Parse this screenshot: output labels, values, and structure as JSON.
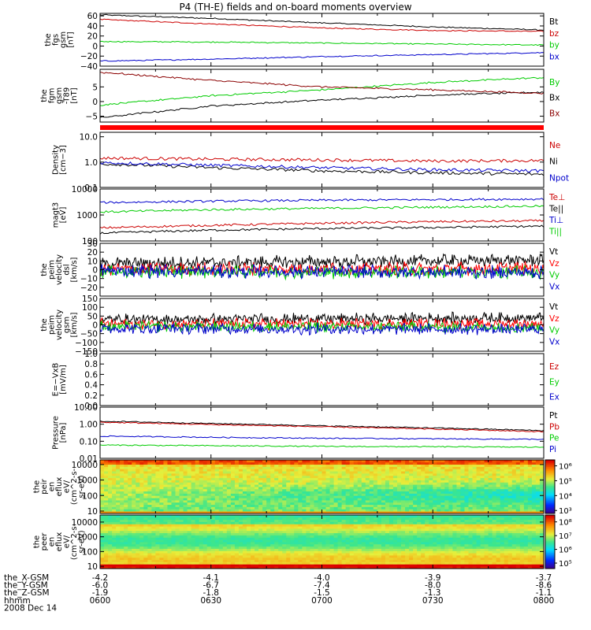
{
  "title": "P4 (TH-E) fields and on-board moments overview",
  "date_label": "2008 Dec 14",
  "x_axis": {
    "ticks": [
      "0600",
      "0630",
      "0700",
      "0730",
      "0800"
    ],
    "rows": [
      {
        "label": "the_X-GSM",
        "values": [
          "-4.2",
          "-4.1",
          "-4.0",
          "-3.9",
          "-3.7"
        ]
      },
      {
        "label": "the_Y-GSM",
        "values": [
          "-6.0",
          "-6.7",
          "-7.4",
          "-8.0",
          "-8.6"
        ]
      },
      {
        "label": "the_Z-GSM",
        "values": [
          "-1.9",
          "-1.8",
          "-1.5",
          "-1.3",
          "-1.1"
        ]
      },
      {
        "label": "hhmm",
        "values": [
          "0600",
          "0630",
          "0700",
          "0730",
          "0800"
        ]
      }
    ]
  },
  "chart_data": [
    {
      "type": "line",
      "ylabel": [
        "the",
        "fgs",
        "gsm",
        "[nT]"
      ],
      "ylim": [
        -40,
        65
      ],
      "yticks": [
        "60",
        "40",
        "20",
        "0",
        "−20",
        "−40"
      ],
      "ytick_values": [
        60,
        40,
        20,
        0,
        -20,
        -40
      ],
      "series": [
        {
          "name": "Bt",
          "color": "#000000",
          "x": [
            6.0,
            6.5,
            7.0,
            7.5,
            8.0
          ],
          "y": [
            62,
            55,
            46,
            38,
            32
          ]
        },
        {
          "name": "bz",
          "color": "#cc0000",
          "x": [
            6.0,
            6.5,
            7.0,
            7.5,
            8.0
          ],
          "y": [
            53,
            44,
            36,
            31,
            29
          ]
        },
        {
          "name": "by",
          "color": "#00cc00",
          "x": [
            6.0,
            6.5,
            7.0,
            7.5,
            8.0
          ],
          "y": [
            9,
            8,
            6,
            4,
            2
          ]
        },
        {
          "name": "bx",
          "color": "#0000cc",
          "x": [
            6.0,
            6.5,
            7.0,
            7.5,
            8.0
          ],
          "y": [
            -30,
            -26,
            -21,
            -17,
            -13
          ]
        }
      ]
    },
    {
      "type": "line",
      "ylabel": [
        "the",
        "fgm",
        "gsm",
        "-T89",
        "[nT]"
      ],
      "ylim": [
        -7,
        11
      ],
      "yticks": [
        "5",
        "0",
        "−5"
      ],
      "ytick_values": [
        5,
        0,
        -5
      ],
      "series": [
        {
          "name": "By",
          "color": "#00cc00",
          "x": [
            6.0,
            6.5,
            7.0,
            7.5,
            8.0
          ],
          "y": [
            -1.2,
            2.0,
            4.0,
            6.5,
            8.2
          ]
        },
        {
          "name": "Bx",
          "color": "#000000",
          "x": [
            6.0,
            6.5,
            7.0,
            7.5,
            8.0
          ],
          "y": [
            -5.5,
            -1.5,
            0.5,
            2.2,
            3.2
          ]
        },
        {
          "name": "Bx",
          "color": "#8b0000",
          "x": [
            6.0,
            6.5,
            7.0,
            7.5,
            8.0
          ],
          "y": [
            10.0,
            7.2,
            5.0,
            4.0,
            2.8
          ]
        }
      ]
    },
    {
      "type": "line",
      "ylabel": [
        "Density",
        "[cm−3]"
      ],
      "ylim": [
        0.1,
        15
      ],
      "log": true,
      "yticks": [
        "10.0",
        "1.0",
        "0.1"
      ],
      "ytick_values": [
        10,
        1,
        0.1
      ],
      "series": [
        {
          "name": "Ne",
          "color": "#cc0000",
          "x": [
            6.0,
            6.5,
            7.0,
            7.5,
            8.0
          ],
          "y": [
            1.45,
            1.3,
            1.22,
            1.1,
            1.15
          ]
        },
        {
          "name": "Ni",
          "color": "#000000",
          "x": [
            6.0,
            6.5,
            7.0,
            7.5,
            8.0
          ],
          "y": [
            0.85,
            0.6,
            0.45,
            0.38,
            0.33
          ]
        },
        {
          "name": "Npot",
          "color": "#0000cc",
          "x": [
            6.0,
            6.5,
            7.0,
            7.5,
            8.0
          ],
          "y": [
            0.95,
            0.75,
            0.6,
            0.5,
            0.45
          ]
        }
      ]
    },
    {
      "type": "line",
      "ylabel": [
        "magt3",
        "[eV]"
      ],
      "ylim": [
        100,
        10000
      ],
      "log": true,
      "yticks": [
        "10000",
        "1000",
        "100"
      ],
      "ytick_values": [
        10000,
        1000,
        100
      ],
      "series": [
        {
          "name": "Te⊥",
          "color": "#cc0000",
          "x": [
            6.0,
            6.5,
            7.0,
            7.5,
            8.0
          ],
          "y": [
            320,
            400,
            480,
            550,
            600
          ]
        },
        {
          "name": "Te||",
          "color": "#000000",
          "x": [
            6.0,
            6.5,
            7.0,
            7.5,
            8.0
          ],
          "y": [
            200,
            260,
            300,
            330,
            370
          ]
        },
        {
          "name": "Ti⊥",
          "color": "#0000cc",
          "x": [
            6.0,
            6.5,
            7.0,
            7.5,
            8.0
          ],
          "y": [
            3000,
            3400,
            3700,
            3900,
            4100
          ]
        },
        {
          "name": "Ti||",
          "color": "#00cc00",
          "x": [
            6.0,
            6.5,
            7.0,
            7.5,
            8.0
          ],
          "y": [
            1300,
            1600,
            1800,
            2000,
            2200
          ]
        }
      ]
    },
    {
      "type": "line",
      "ylabel": [
        "the",
        "peim",
        "velocity",
        "dsl",
        "[km/s]"
      ],
      "ylim": [
        -30,
        30
      ],
      "yticks": [
        "30",
        "20",
        "10",
        "0",
        "−10",
        "−20"
      ],
      "ytick_values": [
        30,
        20,
        10,
        0,
        -10,
        -20
      ],
      "series": [
        {
          "name": "Vt",
          "color": "#000000",
          "x": [
            6.0,
            6.5,
            7.0,
            7.5,
            8.0
          ],
          "y": [
            7,
            8,
            9,
            10,
            11
          ]
        },
        {
          "name": "Vz",
          "color": "#ff0000",
          "x": [
            6.0,
            6.5,
            7.0,
            7.5,
            8.0
          ],
          "y": [
            1,
            1,
            1,
            1,
            2
          ]
        },
        {
          "name": "Vy",
          "color": "#00cc00",
          "x": [
            6.0,
            6.5,
            7.0,
            7.5,
            8.0
          ],
          "y": [
            -2,
            -2,
            -3,
            -3,
            -3
          ]
        },
        {
          "name": "Vx",
          "color": "#0000cc",
          "x": [
            6.0,
            6.5,
            7.0,
            7.5,
            8.0
          ],
          "y": [
            -1,
            -2,
            -2,
            -3,
            -3
          ]
        }
      ]
    },
    {
      "type": "line",
      "ylabel": [
        "the",
        "peim",
        "velocity",
        "gsm",
        "[km/s]"
      ],
      "ylim": [
        -150,
        150
      ],
      "yticks": [
        "150",
        "100",
        "50",
        "0",
        "−50",
        "−100",
        "−150"
      ],
      "ytick_values": [
        150,
        100,
        50,
        0,
        -50,
        -100,
        -150
      ],
      "series": [
        {
          "name": "Vt",
          "color": "#000000",
          "x": [
            6.0,
            6.5,
            7.0,
            7.5,
            8.0
          ],
          "y": [
            30,
            32,
            35,
            38,
            40
          ]
        },
        {
          "name": "Vz",
          "color": "#ff0000",
          "x": [
            6.0,
            6.5,
            7.0,
            7.5,
            8.0
          ],
          "y": [
            5,
            5,
            6,
            6,
            7
          ]
        },
        {
          "name": "Vy",
          "color": "#00cc00",
          "x": [
            6.0,
            6.5,
            7.0,
            7.5,
            8.0
          ],
          "y": [
            -10,
            -10,
            -12,
            -12,
            -15
          ]
        },
        {
          "name": "Vx",
          "color": "#0000cc",
          "x": [
            6.0,
            6.5,
            7.0,
            7.5,
            8.0
          ],
          "y": [
            -20,
            -22,
            -24,
            -25,
            -28
          ]
        }
      ]
    },
    {
      "type": "line",
      "ylabel": [
        "E=−VxB",
        "[mV/m]"
      ],
      "ylim": [
        0,
        1
      ],
      "yticks": [
        "1.0",
        "0.8",
        "0.6",
        "0.4",
        "0.2",
        "0.0"
      ],
      "ytick_values": [
        1.0,
        0.8,
        0.6,
        0.4,
        0.2,
        0.0
      ],
      "series": [
        {
          "name": "Ez",
          "color": "#cc0000",
          "x": [],
          "y": []
        },
        {
          "name": "Ey",
          "color": "#00cc00",
          "x": [],
          "y": []
        },
        {
          "name": "Ex",
          "color": "#0000cc",
          "x": [],
          "y": []
        }
      ]
    },
    {
      "type": "line",
      "ylabel": [
        "Pressure",
        "[nPa]"
      ],
      "ylim": [
        0.01,
        10
      ],
      "log": true,
      "yticks": [
        "10.00",
        "1.00",
        "0.10",
        "0.01"
      ],
      "ytick_values": [
        10,
        1,
        0.1,
        0.01
      ],
      "series": [
        {
          "name": "Pt",
          "color": "#000000",
          "x": [
            6.0,
            6.5,
            7.0,
            7.5,
            8.0
          ],
          "y": [
            1.5,
            1.1,
            0.8,
            0.6,
            0.42
          ]
        },
        {
          "name": "Pb",
          "color": "#cc0000",
          "x": [
            6.0,
            6.5,
            7.0,
            7.5,
            8.0
          ],
          "y": [
            1.3,
            0.95,
            0.7,
            0.52,
            0.36
          ]
        },
        {
          "name": "Pe",
          "color": "#00cc00",
          "x": [
            6.0,
            6.5,
            7.0,
            7.5,
            8.0
          ],
          "y": [
            0.06,
            0.055,
            0.05,
            0.048,
            0.045
          ]
        },
        {
          "name": "Pi",
          "color": "#0000cc",
          "x": [
            6.0,
            6.5,
            7.0,
            7.5,
            8.0
          ],
          "y": [
            0.2,
            0.17,
            0.15,
            0.14,
            0.13
          ]
        }
      ]
    },
    {
      "type": "heatmap",
      "ylabel": [
        "the",
        "peir",
        "en",
        "eflux",
        "eV/",
        "(cm^2-s-",
        "sr-eV)"
      ],
      "ylim": [
        7,
        20000
      ],
      "log": true,
      "yticks": [
        "10000",
        "1000",
        "100",
        "10"
      ],
      "ytick_values": [
        10000,
        1000,
        100,
        10
      ],
      "colorbar_ticks": [
        "10⁶",
        "10⁵",
        "10⁴",
        "10³"
      ],
      "colorbar_tick_values": [
        6,
        5,
        4,
        3
      ],
      "colorbar_range": [
        2.8,
        6.4
      ]
    },
    {
      "type": "heatmap",
      "ylabel": [
        "the",
        "peer",
        "en",
        "eflux",
        "eV/",
        "(cm^2-s-",
        "sr-eV)"
      ],
      "ylim": [
        7,
        30000
      ],
      "log": true,
      "yticks": [
        "10000",
        "1000",
        "100",
        "10"
      ],
      "ytick_values": [
        10000,
        1000,
        100,
        10
      ],
      "colorbar_ticks": [
        "10⁸",
        "10⁷",
        "10⁶",
        "10⁵"
      ],
      "colorbar_tick_values": [
        8,
        7,
        6,
        5
      ],
      "colorbar_range": [
        4.6,
        8.5
      ]
    }
  ]
}
